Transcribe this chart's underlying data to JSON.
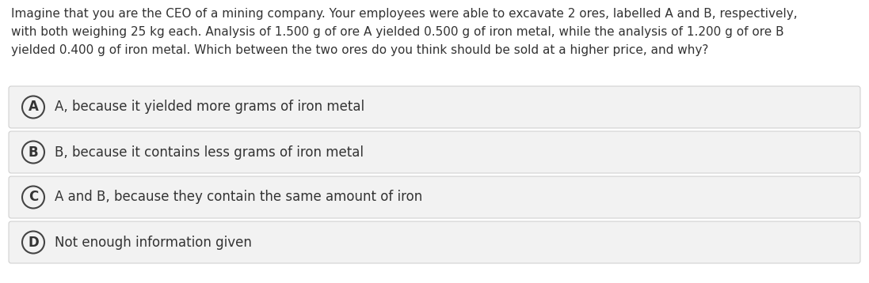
{
  "background_color": "#ffffff",
  "question_text": "Imagine that you are the CEO of a mining company. Your employees were able to excavate 2 ores, labelled A and B, respectively,\nwith both weighing 25 kg each. Analysis of 1.500 g of ore A yielded 0.500 g of iron metal, while the analysis of 1.200 g of ore B\nyielded 0.400 g of iron metal. Which between the two ores do you think should be sold at a higher price, and why?",
  "options": [
    {
      "label": "A",
      "text": "A, because it yielded more grams of iron metal"
    },
    {
      "label": "B",
      "text": "B, because it contains less grams of iron metal"
    },
    {
      "label": "C",
      "text": "A and B, because they contain the same amount of iron"
    },
    {
      "label": "D",
      "text": "Not enough information given"
    }
  ],
  "option_bg_color": "#f2f2f2",
  "option_border_color": "#cccccc",
  "text_color": "#333333",
  "circle_border_color": "#444444",
  "question_fontsize": 11.0,
  "option_fontsize": 12.0,
  "label_fontsize": 12.0,
  "fig_width": 10.97,
  "fig_height": 3.58,
  "dpi": 100
}
